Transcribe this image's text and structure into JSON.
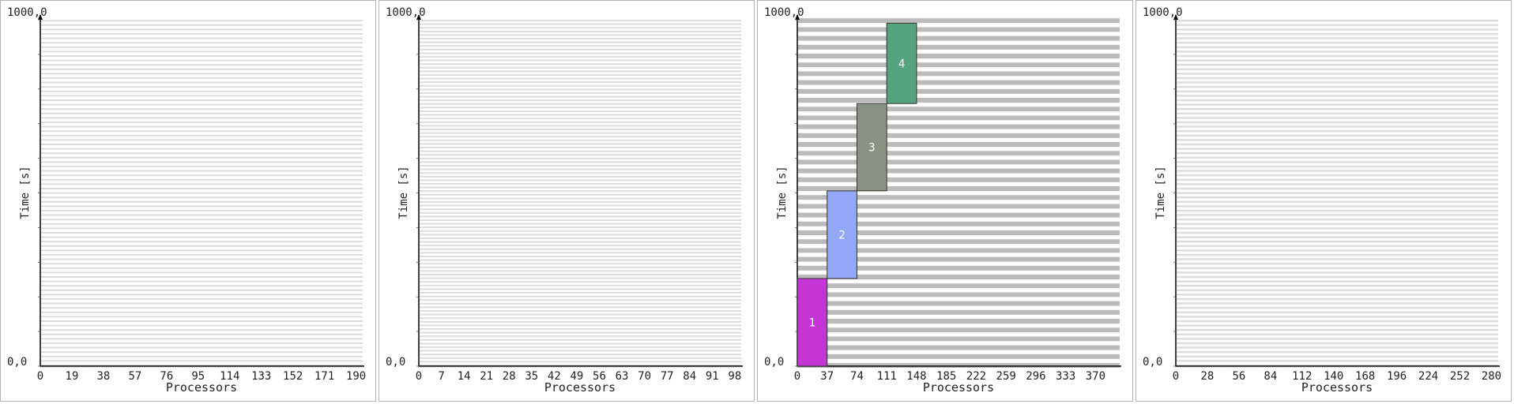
{
  "chart_data": [
    {
      "type": "gantt",
      "ymax_label": "1000,0",
      "origin_label": "0,0",
      "xlabel": "Processors",
      "ylabel": "Time [s]",
      "xticks": [
        0,
        19,
        38,
        57,
        76,
        95,
        114,
        133,
        152,
        171,
        190
      ],
      "xmax": 194,
      "ylim": [
        0,
        1000
      ],
      "jobs": []
    },
    {
      "type": "gantt",
      "ymax_label": "1000,0",
      "origin_label": "0,0",
      "xlabel": "Processors",
      "ylabel": "Time [s]",
      "xticks": [
        0,
        7,
        14,
        21,
        28,
        35,
        42,
        49,
        56,
        63,
        70,
        77,
        84,
        91,
        98
      ],
      "xmax": 100,
      "ylim": [
        0,
        1000
      ],
      "jobs": []
    },
    {
      "type": "gantt",
      "ymax_label": "1000,0",
      "origin_label": "0,0",
      "xlabel": "Processors",
      "ylabel": "Time [s]",
      "xticks": [
        0,
        37,
        74,
        111,
        148,
        185,
        222,
        259,
        296,
        333,
        370
      ],
      "xmax": 400,
      "ylim": [
        0,
        1000
      ],
      "jobs": [
        {
          "label": "1",
          "x_start": 0,
          "x_end": 37,
          "t_start": 0,
          "t_end": 253,
          "color": "#c535d6"
        },
        {
          "label": "2",
          "x_start": 37,
          "x_end": 74,
          "t_start": 253,
          "t_end": 506,
          "color": "#92a7f7"
        },
        {
          "label": "3",
          "x_start": 74,
          "x_end": 111,
          "t_start": 506,
          "t_end": 758,
          "color": "#8a9284"
        },
        {
          "label": "4",
          "x_start": 111,
          "x_end": 148,
          "t_start": 758,
          "t_end": 990,
          "color": "#55a37e"
        }
      ]
    },
    {
      "type": "gantt",
      "ymax_label": "1000,0",
      "origin_label": "0,0",
      "xlabel": "Processors",
      "ylabel": "Time [s]",
      "xticks": [
        0,
        28,
        56,
        84,
        112,
        140,
        168,
        196,
        224,
        252,
        280
      ],
      "xmax": 286,
      "ylim": [
        0,
        1000
      ],
      "jobs": []
    }
  ],
  "colors": {
    "grid_fine": "#dddddd",
    "grid_coarse": "#bbbbbb",
    "axis": "#000000",
    "job_border": "#333333",
    "job_text": "#ffffff"
  }
}
